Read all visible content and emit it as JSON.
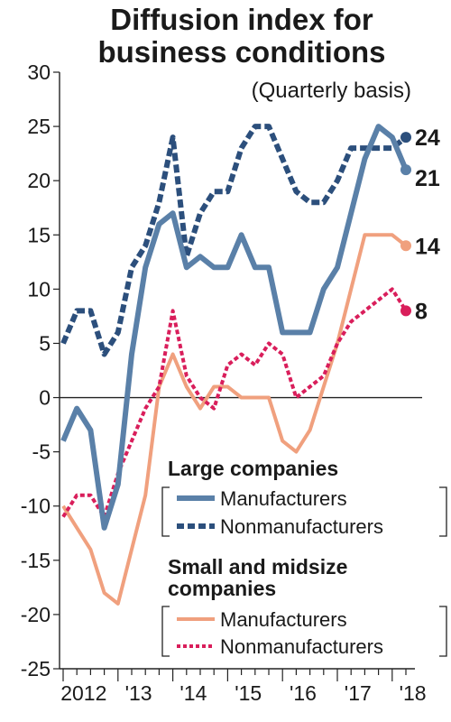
{
  "chart_data": {
    "type": "line",
    "title": [
      "Diffusion index for",
      "business conditions"
    ],
    "subtitle": "(Quarterly basis)",
    "ylim": [
      -25,
      30
    ],
    "yticks": [
      30,
      25,
      20,
      15,
      10,
      5,
      0,
      -5,
      -10,
      -15,
      -20,
      -25
    ],
    "year_labels": [
      "2012",
      "'13",
      "'14",
      "'15",
      "'16",
      "'17",
      "'18"
    ],
    "x": [
      "2012 Q1",
      "2012 Q2",
      "2012 Q3",
      "2012 Q4",
      "2013 Q1",
      "2013 Q2",
      "2013 Q3",
      "2013 Q4",
      "2014 Q1",
      "2014 Q2",
      "2014 Q3",
      "2014 Q4",
      "2015 Q1",
      "2015 Q2",
      "2015 Q3",
      "2015 Q4",
      "2016 Q1",
      "2016 Q2",
      "2016 Q3",
      "2016 Q4",
      "2017 Q1",
      "2017 Q2",
      "2017 Q3",
      "2017 Q4",
      "2018 Q1",
      "2018 Q2"
    ],
    "series": [
      {
        "group": "large",
        "name": "Manufacturers",
        "color": "#5a80a8",
        "dash": "solid",
        "values": [
          -4,
          -1,
          -3,
          -12,
          -8,
          4,
          12,
          16,
          17,
          12,
          13,
          12,
          12,
          15,
          12,
          12,
          6,
          6,
          6,
          10,
          12,
          17,
          22,
          25,
          24,
          21
        ],
        "end_label": "21"
      },
      {
        "group": "large",
        "name": "Nonmanufacturers",
        "color": "#2c4f7c",
        "dash": "dashed",
        "values": [
          5,
          8,
          8,
          4,
          6,
          12,
          14,
          18,
          24,
          13,
          17,
          19,
          19,
          23,
          25,
          25,
          22,
          19,
          18,
          18,
          20,
          23,
          23,
          23,
          23,
          24
        ],
        "end_label": "24"
      },
      {
        "group": "small",
        "name": "Manufacturers",
        "color": "#f0a07e",
        "dash": "solid",
        "values": [
          -10,
          -12,
          -14,
          -18,
          -19,
          -14,
          -9,
          1,
          4,
          1,
          -1,
          1,
          1,
          0,
          0,
          0,
          -4,
          -5,
          -3,
          1,
          5,
          10,
          15,
          15,
          15,
          14
        ],
        "end_label": "14"
      },
      {
        "group": "small",
        "name": "Nonmanufacturers",
        "color": "#d91e5b",
        "dash": "dotted",
        "values": [
          -11,
          -9,
          -9,
          -11,
          -7,
          -4,
          -1,
          1,
          8,
          2,
          0,
          -1,
          3,
          4,
          3,
          5,
          4,
          0,
          1,
          2,
          5,
          7,
          8,
          9,
          10,
          8
        ],
        "end_label": "8"
      }
    ],
    "legend": {
      "large_heading": "Large companies",
      "small_heading_line1": "Small and midsize",
      "small_heading_line2": "companies",
      "items": [
        "Manufacturers",
        "Nonmanufacturers",
        "Manufacturers",
        "Nonmanufacturers"
      ]
    }
  }
}
